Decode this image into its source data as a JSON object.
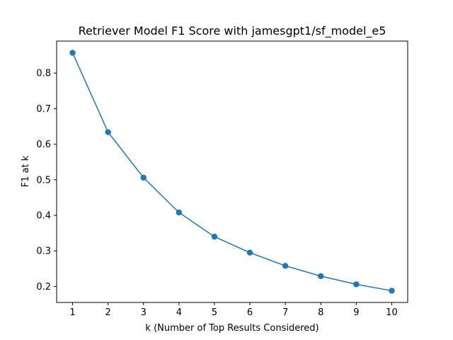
{
  "chart_data": {
    "type": "line",
    "title": "Retriever Model F1 Score with jamesgpt1/sf_model_e5",
    "xlabel": "k (Number of Top Results Considered)",
    "ylabel": "F1 at k",
    "x": [
      1,
      2,
      3,
      4,
      5,
      6,
      7,
      8,
      9,
      10
    ],
    "series": [
      {
        "values": [
          0.857,
          0.634,
          0.506,
          0.408,
          0.34,
          0.295,
          0.258,
          0.229,
          0.206,
          0.188
        ],
        "color": "#1f77b4",
        "marker": "circle"
      }
    ],
    "xticks": [
      1,
      2,
      3,
      4,
      5,
      6,
      7,
      8,
      9,
      10
    ],
    "yticks": [
      0.2,
      0.3,
      0.4,
      0.5,
      0.6,
      0.7,
      0.8
    ],
    "xlim": [
      0.55,
      10.45
    ],
    "ylim": [
      0.155,
      0.89
    ],
    "grid": false,
    "legend": "none"
  }
}
